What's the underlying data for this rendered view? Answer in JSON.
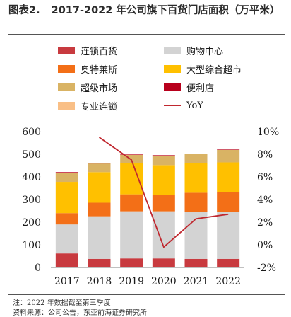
{
  "figure": {
    "label": "图表2.",
    "title": "2017-2022 年公司旗下百货门店面积（万平米）",
    "note": "注：2022 年数据截至第三季度",
    "source": "资料来源：公司公告，东亚前海证券研究所"
  },
  "chart_data": {
    "type": "bar",
    "stacked": true,
    "categories": [
      "2017",
      "2018",
      "2019",
      "2020",
      "2021",
      "2022"
    ],
    "y_left": {
      "ticks": [
        "0",
        "100",
        "200",
        "300",
        "400",
        "500",
        "600"
      ],
      "ylim": [
        0,
        600
      ]
    },
    "y_right": {
      "ticks": [
        "-2%",
        "0%",
        "2%",
        "4%",
        "6%",
        "8%",
        "10%"
      ],
      "ylim": [
        -2,
        10
      ]
    },
    "series": [
      {
        "name": "连锁百货",
        "color": "#c83a3f",
        "values": [
          62,
          38,
          40,
          40,
          38,
          38
        ]
      },
      {
        "name": "购物中心",
        "color": "#d3d3d3",
        "values": [
          128,
          188,
          208,
          208,
          207,
          208
        ]
      },
      {
        "name": "奥特莱斯",
        "color": "#f36f17",
        "values": [
          50,
          60,
          75,
          72,
          85,
          88
        ]
      },
      {
        "name": "大型综合超市",
        "color": "#ffc000",
        "values": [
          138,
          135,
          137,
          132,
          130,
          130
        ]
      },
      {
        "name": "超级市场",
        "color": "#d9b364",
        "values": [
          40,
          38,
          37,
          42,
          40,
          55
        ]
      },
      {
        "name": "便利店",
        "color": "#b8001c",
        "values": [
          3,
          2,
          2,
          2,
          2,
          2
        ]
      },
      {
        "name": "专业连锁",
        "color": "#f9bf86",
        "values": [
          0,
          0,
          0,
          0,
          0,
          0
        ]
      }
    ],
    "line": {
      "name": "YoY",
      "color": "#c0282f",
      "values": [
        null,
        9.5,
        7.5,
        -0.2,
        2.3,
        2.7
      ]
    }
  }
}
